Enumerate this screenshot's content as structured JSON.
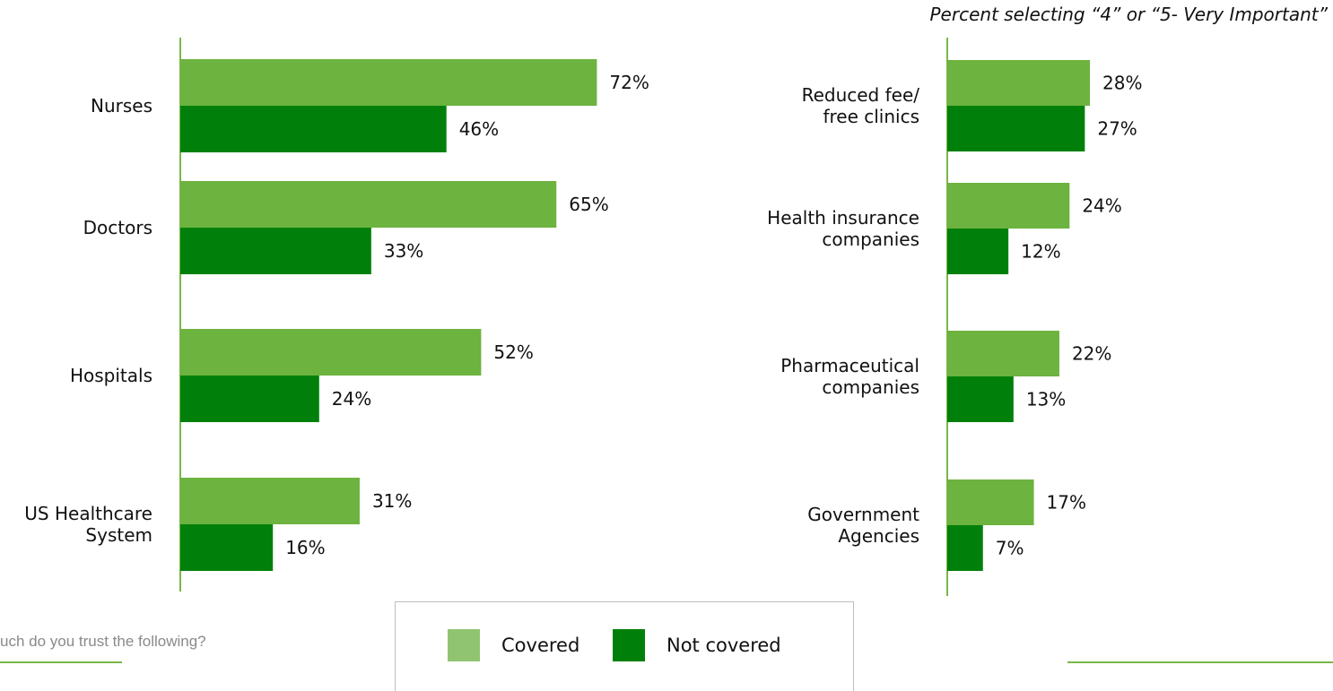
{
  "subtitle": "Percent selecting “4” or “5- Very Important”",
  "question": "uch do you trust the following?",
  "legend": {
    "items": [
      {
        "label": "Covered",
        "color": "#91c470"
      },
      {
        "label": "Not covered",
        "color": "#00800a"
      }
    ]
  },
  "colors": {
    "covered": "#6db33f",
    "not_covered": "#00800a",
    "axis": "#7ab648"
  },
  "chart_data": [
    {
      "type": "bar",
      "orientation": "horizontal",
      "categories": [
        "Nurses",
        "Doctors",
        "Hospitals",
        "US Healthcare System"
      ],
      "series": [
        {
          "name": "Covered",
          "values": [
            72,
            65,
            52,
            31
          ],
          "labels": [
            "72%",
            "65%",
            "52%",
            "31%"
          ]
        },
        {
          "name": "Not covered",
          "values": [
            46,
            33,
            24,
            16
          ],
          "labels": [
            "46%",
            "33%",
            "24%",
            "16%"
          ]
        }
      ],
      "xlim": [
        0,
        100
      ]
    },
    {
      "type": "bar",
      "orientation": "horizontal",
      "categories": [
        "Reduced fee/ free clinics",
        "Health insurance companies",
        "Pharmaceutical companies",
        "Government Agencies"
      ],
      "series": [
        {
          "name": "Covered",
          "values": [
            28,
            24,
            22,
            17
          ],
          "labels": [
            "28%",
            "24%",
            "22%",
            "17%"
          ]
        },
        {
          "name": "Not covered",
          "values": [
            27,
            12,
            13,
            7
          ],
          "labels": [
            "27%",
            "12%",
            "13%",
            "7%"
          ]
        }
      ],
      "xlim": [
        0,
        100
      ]
    }
  ]
}
